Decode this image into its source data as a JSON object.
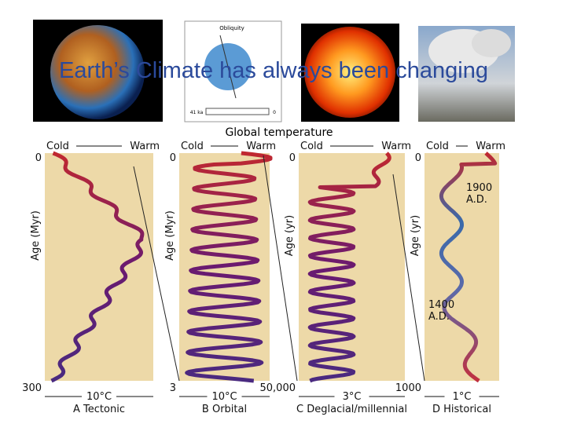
{
  "title": "Earth’s Climate has always been changing",
  "images": {
    "obliquity": {
      "label": "Obliquity",
      "scale_start": "41 ka",
      "scale_end": "0"
    }
  },
  "figure": {
    "title": "Global temperature",
    "panels": [
      {
        "cold": "Cold",
        "warm": "Warm",
        "top": "0",
        "bottom": "300",
        "axis_label": "Age (Myr)",
        "scale": "10°C",
        "caption": "A Tectonic"
      },
      {
        "cold": "Cold",
        "warm": "Warm",
        "top": "0",
        "bottom": "3",
        "axis_label": "Age (Myr)",
        "scale": "10°C",
        "caption": "B Orbital"
      },
      {
        "cold": "Cold",
        "warm": "Warm",
        "top": "0",
        "bottom": "50,000",
        "axis_label": "Age (yr)",
        "scale": "3°C",
        "caption": "C Deglacial/millennial"
      },
      {
        "cold": "Cold",
        "warm": "Warm",
        "top": "0",
        "bottom": "1000",
        "axis_label": "Age (yr)",
        "scale": "1°C",
        "caption": "D Historical",
        "annotations": [
          {
            "year": "1900",
            "era": "A.D."
          },
          {
            "year": "1400",
            "era": "A.D."
          }
        ]
      }
    ]
  }
}
